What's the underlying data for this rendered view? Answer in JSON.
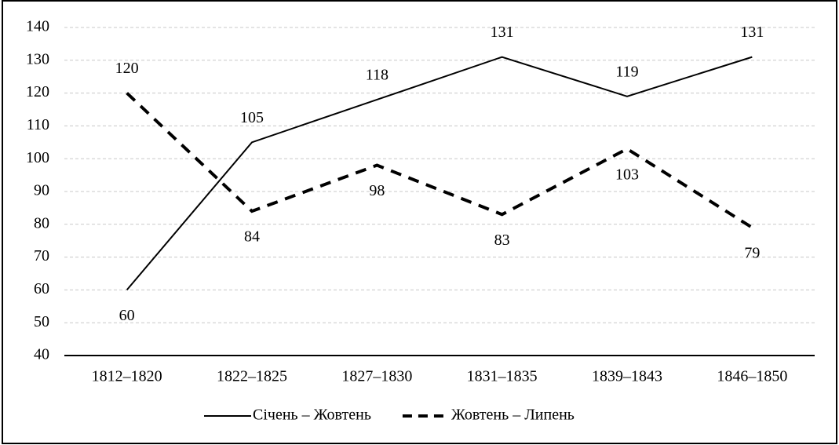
{
  "chart_data": {
    "type": "line",
    "categories": [
      "1812–1820",
      "1822–1825",
      "1827–1830",
      "1831–1835",
      "1839–1843",
      "1846–1850"
    ],
    "series": [
      {
        "name": "Січень – Жовтень",
        "color": "#000000",
        "dash": "solid",
        "values": [
          60,
          105,
          118,
          131,
          119,
          131
        ]
      },
      {
        "name": "Жовтень – Липень",
        "color": "#000000",
        "dash": "dashed",
        "values": [
          120,
          84,
          98,
          83,
          103,
          79
        ]
      }
    ],
    "ylim": [
      40,
      140
    ],
    "yticks": [
      40,
      50,
      60,
      70,
      80,
      90,
      100,
      110,
      120,
      130,
      140
    ],
    "grid": true,
    "legend": "bottom"
  }
}
